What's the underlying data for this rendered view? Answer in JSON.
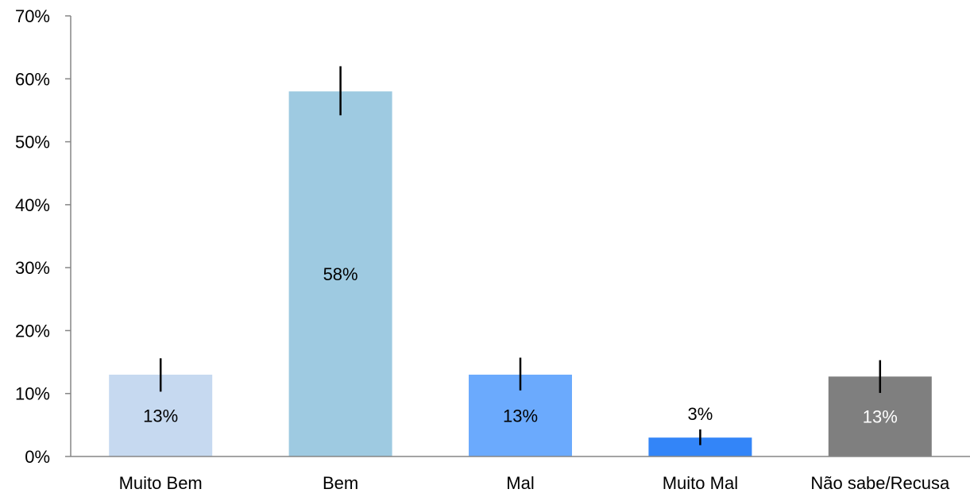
{
  "chart_data": {
    "type": "bar",
    "categories": [
      "Muito Bem",
      "Bem",
      "Mal",
      "Muito Mal",
      "Não sabe/Recusa"
    ],
    "values": [
      13,
      58,
      13,
      3,
      12.7
    ],
    "data_labels": [
      "13%",
      "58%",
      "13%",
      "3%",
      "13%"
    ],
    "error_bars": [
      {
        "low": 10.3,
        "high": 15.6
      },
      {
        "low": 54.2,
        "high": 62.0
      },
      {
        "low": 10.5,
        "high": 15.7
      },
      {
        "low": 1.8,
        "high": 4.3
      },
      {
        "low": 10.1,
        "high": 15.3
      }
    ],
    "colors": [
      "#c6d9f0",
      "#9ecae1",
      "#6baafd",
      "#3385f8",
      "#7f7f7f"
    ],
    "label_colors": [
      "#000000",
      "#000000",
      "#000000",
      "#000000",
      "#ffffff"
    ],
    "label_positions": [
      "inside",
      "inside",
      "inside",
      "above",
      "inside"
    ],
    "ylim": [
      0,
      70
    ],
    "yticks": [
      0,
      10,
      20,
      30,
      40,
      50,
      60,
      70
    ],
    "ytick_labels": [
      "0%",
      "10%",
      "20%",
      "30%",
      "40%",
      "50%",
      "60%",
      "70%"
    ],
    "grid": false,
    "title": "",
    "xlabel": "",
    "ylabel": ""
  }
}
